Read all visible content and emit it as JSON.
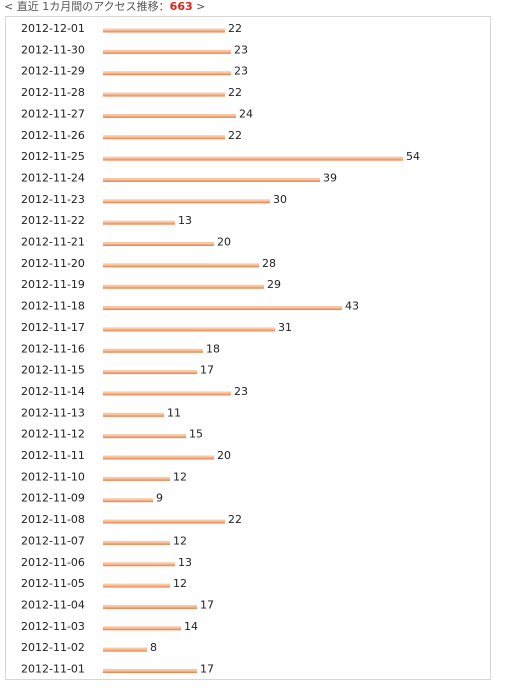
{
  "header": {
    "prefix": "< 直近 1カ月間のアクセス推移：",
    "total": "663",
    "suffix": " >"
  },
  "colors": {
    "bar_top": "#f6c9a8",
    "bar_bottom": "#ef7a3c",
    "total_accent": "#e0201c"
  },
  "chart_data": {
    "type": "bar",
    "orientation": "horizontal",
    "title": "",
    "xlabel": "",
    "ylabel": "",
    "xlim": [
      0,
      54
    ],
    "grid": false,
    "categories": [
      "2012-12-01",
      "2012-11-30",
      "2012-11-29",
      "2012-11-28",
      "2012-11-27",
      "2012-11-26",
      "2012-11-25",
      "2012-11-24",
      "2012-11-23",
      "2012-11-22",
      "2012-11-21",
      "2012-11-20",
      "2012-11-19",
      "2012-11-18",
      "2012-11-17",
      "2012-11-16",
      "2012-11-15",
      "2012-11-14",
      "2012-11-13",
      "2012-11-12",
      "2012-11-11",
      "2012-11-10",
      "2012-11-09",
      "2012-11-08",
      "2012-11-07",
      "2012-11-06",
      "2012-11-05",
      "2012-11-04",
      "2012-11-03",
      "2012-11-02",
      "2012-11-01"
    ],
    "values": [
      22,
      23,
      23,
      22,
      24,
      22,
      54,
      39,
      30,
      13,
      20,
      28,
      29,
      43,
      31,
      18,
      17,
      23,
      11,
      15,
      20,
      12,
      9,
      22,
      12,
      13,
      12,
      17,
      14,
      8,
      17
    ]
  }
}
